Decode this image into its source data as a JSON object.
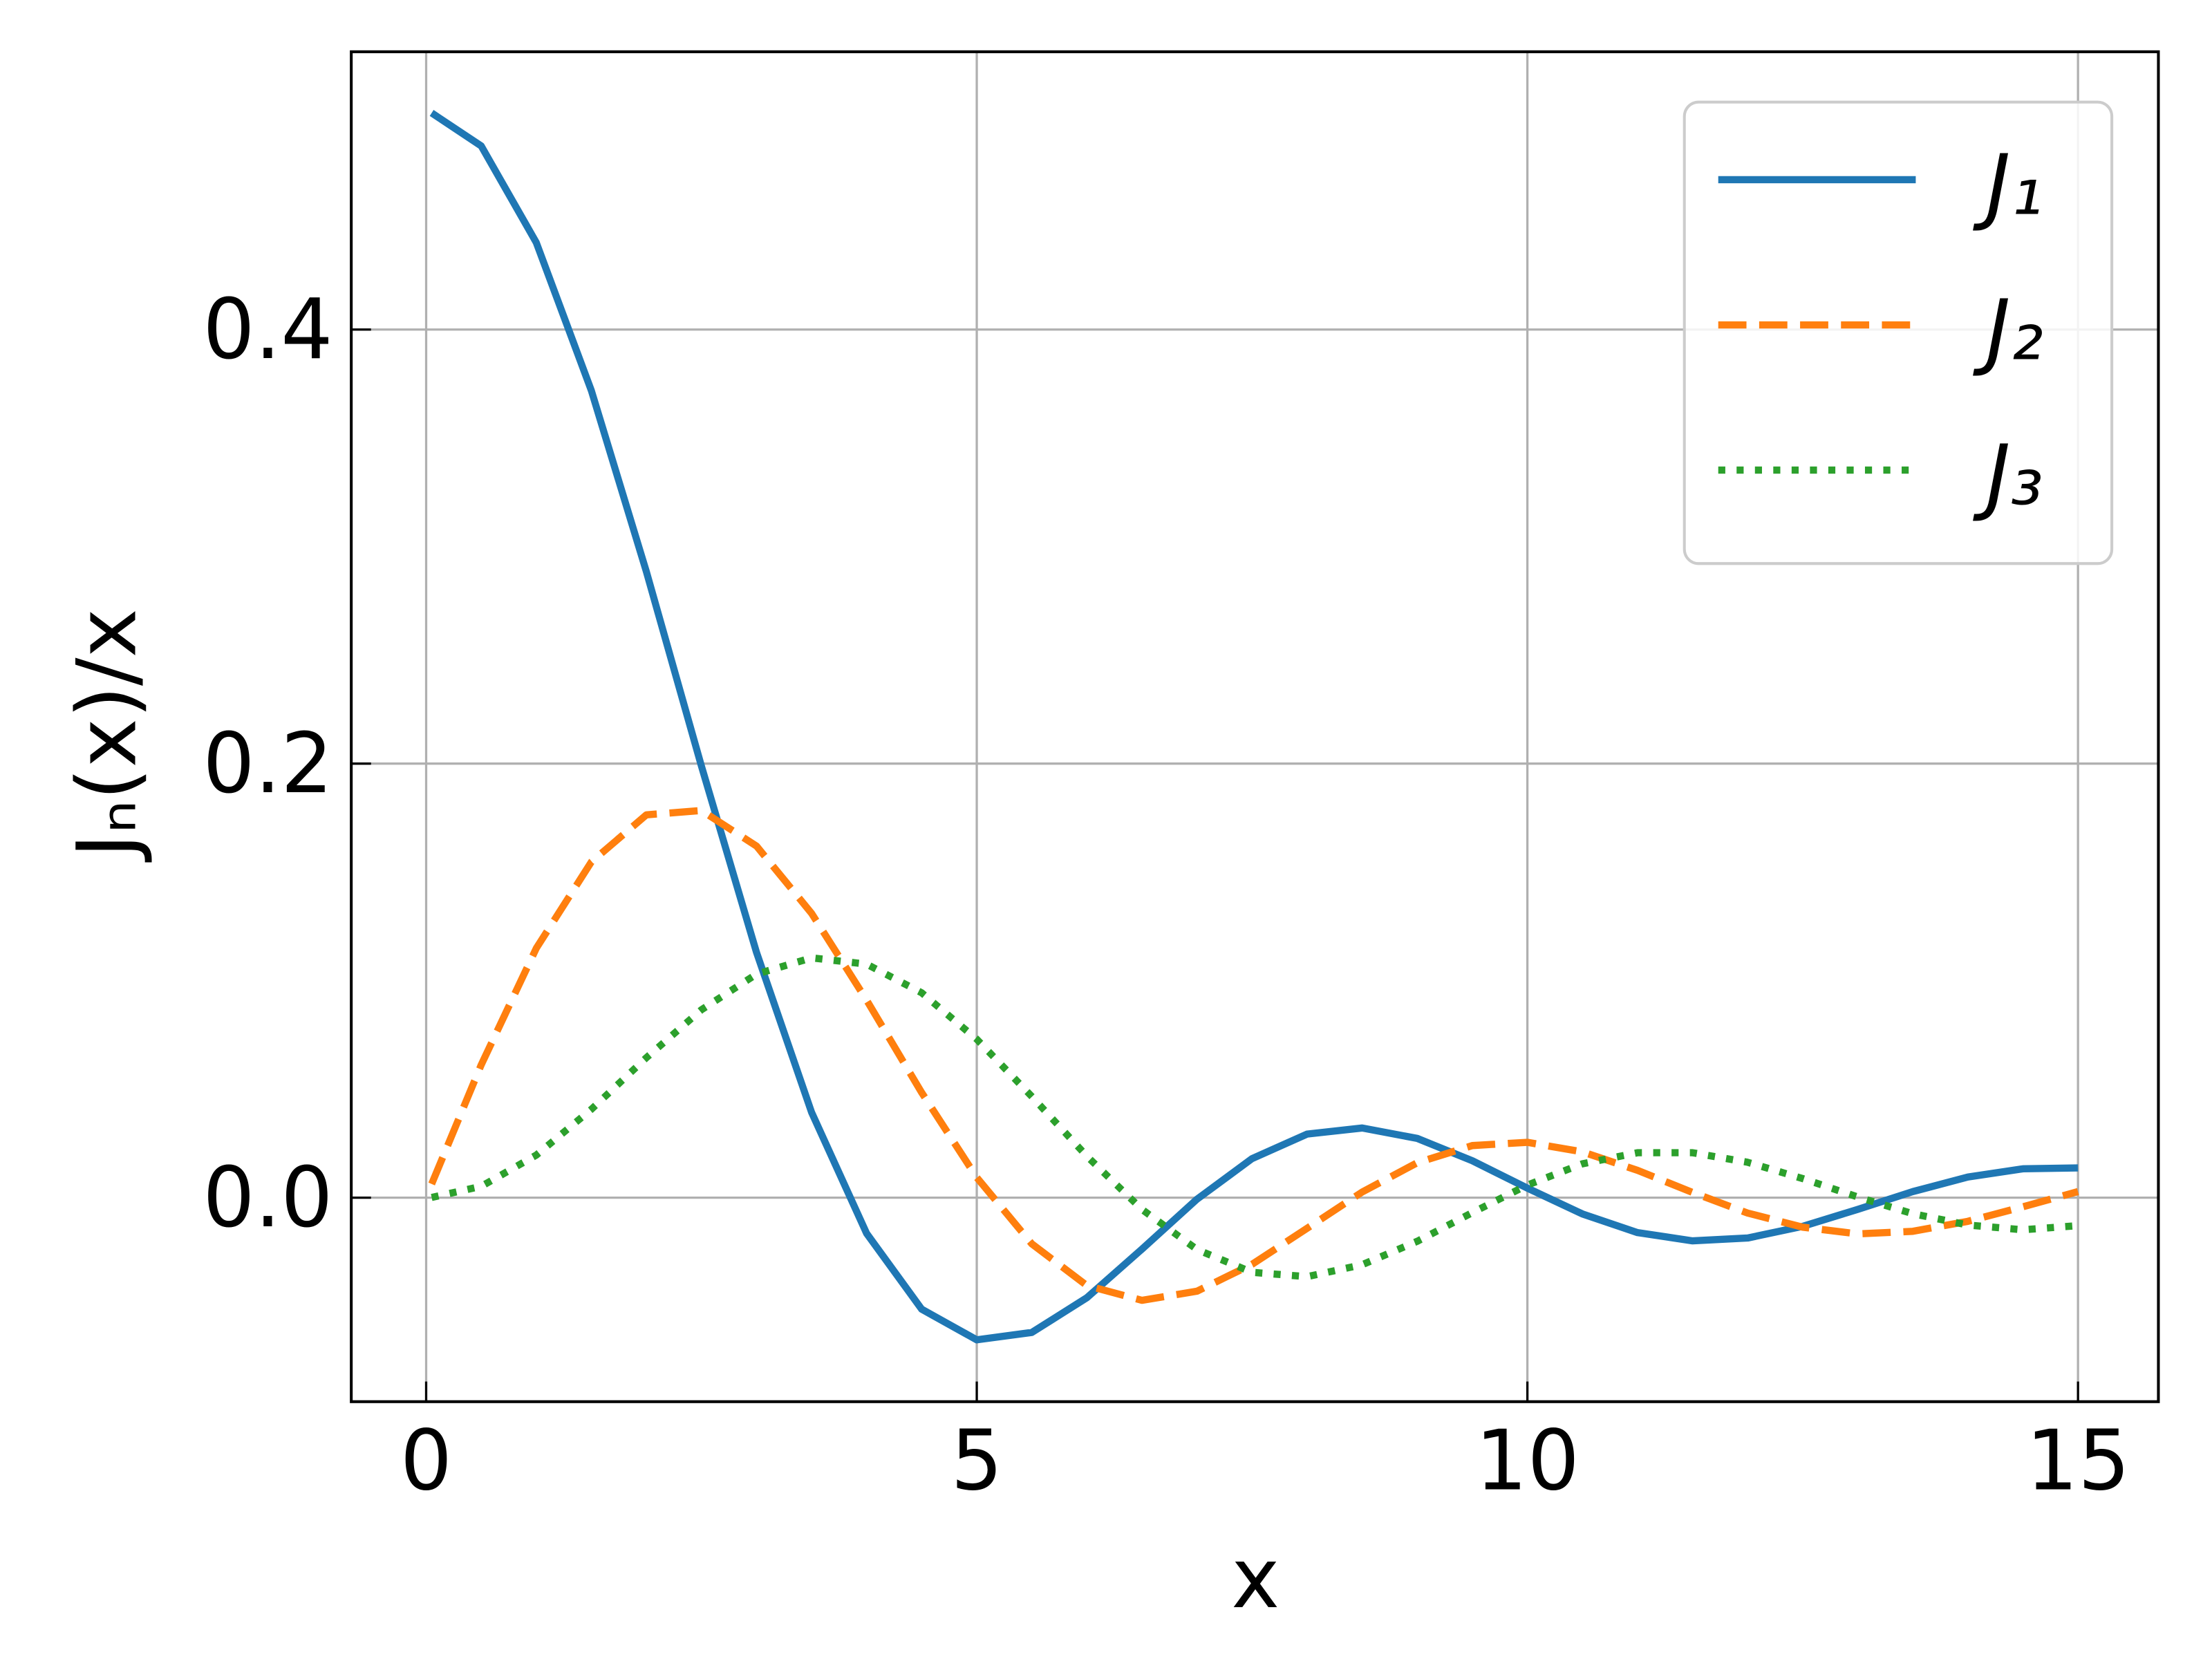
{
  "chart_data": {
    "type": "line",
    "xlabel": "x",
    "ylabel": "Jₙ(x)/x",
    "x": [
      0.05,
      0.5,
      1,
      1.5,
      2,
      2.5,
      3,
      3.5,
      4,
      4.5,
      5,
      5.5,
      6,
      6.5,
      7,
      7.5,
      8,
      8.5,
      9,
      9.5,
      10,
      10.5,
      11,
      11.5,
      12,
      12.5,
      13,
      13.5,
      14,
      14.5,
      15
    ],
    "series": [
      {
        "name": "J₁",
        "color": "#1f77b4",
        "style": "solid",
        "values": [
          0.4998,
          0.4846,
          0.4401,
          0.3719,
          0.2884,
          0.1988,
          0.113,
          0.0393,
          -0.0165,
          -0.0514,
          -0.0655,
          -0.0621,
          -0.0461,
          -0.0237,
          -0.0007,
          0.018,
          0.0293,
          0.0321,
          0.0273,
          0.017,
          0.0044,
          -0.0075,
          -0.0161,
          -0.0199,
          -0.0186,
          -0.0132,
          -0.0054,
          0.0028,
          0.0095,
          0.0133,
          0.0137
        ]
      },
      {
        "name": "J₂",
        "color": "#ff7f0e",
        "style": "dashed",
        "values": [
          0.0063,
          0.0612,
          0.1149,
          0.1547,
          0.1764,
          0.1784,
          0.162,
          0.131,
          0.091,
          0.0484,
          0.0093,
          -0.0213,
          -0.0405,
          -0.0473,
          -0.0431,
          -0.0307,
          -0.0141,
          0.0026,
          0.0161,
          0.024,
          0.0255,
          0.0211,
          0.0126,
          0.0024,
          -0.0071,
          -0.0136,
          -0.0167,
          -0.0155,
          -0.0109,
          -0.0042,
          0.0028
        ]
      },
      {
        "name": "J₃",
        "color": "#2ca02c",
        "style": "dotted",
        "values": [
          0.0001,
          0.0052,
          0.0196,
          0.0407,
          0.0645,
          0.0866,
          0.103,
          0.1105,
          0.1076,
          0.0944,
          0.073,
          0.0466,
          0.0191,
          -0.0054,
          -0.0239,
          -0.0344,
          -0.0364,
          -0.0309,
          -0.0201,
          -0.0069,
          0.0058,
          0.0156,
          0.0207,
          0.0207,
          0.0163,
          0.0088,
          0.0003,
          -0.0074,
          -0.0126,
          -0.0148,
          -0.0129
        ]
      }
    ],
    "xlim": [
      -0.68,
      15.73
    ],
    "xticks": [
      0,
      5,
      10,
      15
    ],
    "ylim": [
      -0.094,
      0.528
    ],
    "yticks": [
      {
        "value": 0,
        "label": "0.0"
      },
      0.2,
      0.4
    ],
    "grid": true,
    "legend": "upper right"
  }
}
